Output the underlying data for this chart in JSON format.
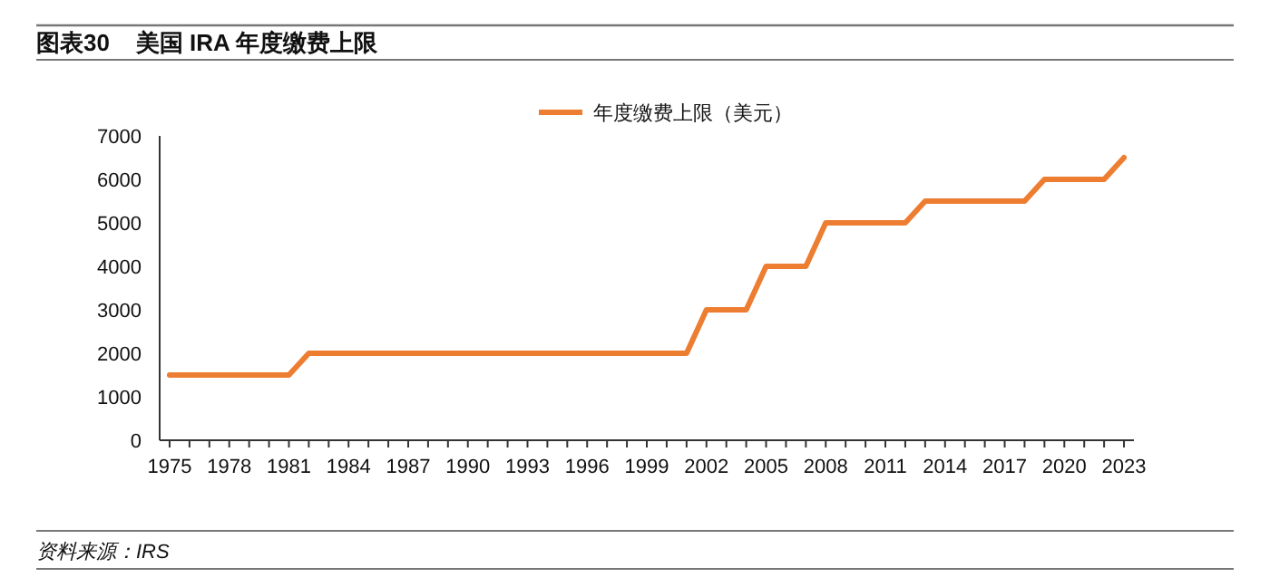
{
  "chart_data": {
    "type": "line",
    "title": "图表30    美国 IRA 年度缴费上限",
    "annotations": [
      "资料来源：IRS"
    ],
    "x": [
      1975,
      1976,
      1977,
      1978,
      1979,
      1980,
      1981,
      1982,
      1983,
      1984,
      1985,
      1986,
      1987,
      1988,
      1989,
      1990,
      1991,
      1992,
      1993,
      1994,
      1995,
      1996,
      1997,
      1998,
      1999,
      2000,
      2001,
      2002,
      2003,
      2004,
      2005,
      2006,
      2007,
      2008,
      2009,
      2010,
      2011,
      2012,
      2013,
      2014,
      2015,
      2016,
      2017,
      2018,
      2019,
      2020,
      2021,
      2022,
      2023
    ],
    "series": [
      {
        "name": "年度缴费上限（美元）",
        "color": "#ed7d31",
        "values": [
          1500,
          1500,
          1500,
          1500,
          1500,
          1500,
          1500,
          2000,
          2000,
          2000,
          2000,
          2000,
          2000,
          2000,
          2000,
          2000,
          2000,
          2000,
          2000,
          2000,
          2000,
          2000,
          2000,
          2000,
          2000,
          2000,
          2000,
          3000,
          3000,
          3000,
          4000,
          4000,
          4000,
          5000,
          5000,
          5000,
          5000,
          5000,
          5500,
          5500,
          5500,
          5500,
          5500,
          5500,
          6000,
          6000,
          6000,
          6000,
          6500
        ]
      }
    ],
    "xlim": [
      1974.5,
      2023.5
    ],
    "xticks": [
      1975,
      {
        "value": 1976,
        "label": null
      },
      {
        "value": 1977,
        "label": null
      },
      1978,
      {
        "value": 1979,
        "label": null
      },
      {
        "value": 1980,
        "label": null
      },
      1981,
      {
        "value": 1982,
        "label": null
      },
      {
        "value": 1983,
        "label": null
      },
      1984,
      {
        "value": 1985,
        "label": null
      },
      {
        "value": 1986,
        "label": null
      },
      1987,
      {
        "value": 1988,
        "label": null
      },
      {
        "value": 1989,
        "label": null
      },
      1990,
      {
        "value": 1991,
        "label": null
      },
      {
        "value": 1992,
        "label": null
      },
      1993,
      {
        "value": 1994,
        "label": null
      },
      {
        "value": 1995,
        "label": null
      },
      1996,
      {
        "value": 1997,
        "label": null
      },
      {
        "value": 1998,
        "label": null
      },
      1999,
      {
        "value": 2000,
        "label": null
      },
      {
        "value": 2001,
        "label": null
      },
      2002,
      {
        "value": 2003,
        "label": null
      },
      {
        "value": 2004,
        "label": null
      },
      2005,
      {
        "value": 2006,
        "label": null
      },
      {
        "value": 2007,
        "label": null
      },
      2008,
      {
        "value": 2009,
        "label": null
      },
      {
        "value": 2010,
        "label": null
      },
      2011,
      {
        "value": 2012,
        "label": null
      },
      {
        "value": 2013,
        "label": null
      },
      2014,
      {
        "value": 2015,
        "label": null
      },
      {
        "value": 2016,
        "label": null
      },
      2017,
      {
        "value": 2018,
        "label": null
      },
      {
        "value": 2019,
        "label": null
      },
      2020,
      {
        "value": 2021,
        "label": null
      },
      {
        "value": 2022,
        "label": null
      },
      2023
    ],
    "ylim": [
      0,
      7000
    ],
    "yticks": [
      0,
      1000,
      2000,
      3000,
      4000,
      5000,
      6000,
      7000
    ],
    "grid": false,
    "legend": "top",
    "marker": "none",
    "line_style": "solid"
  }
}
